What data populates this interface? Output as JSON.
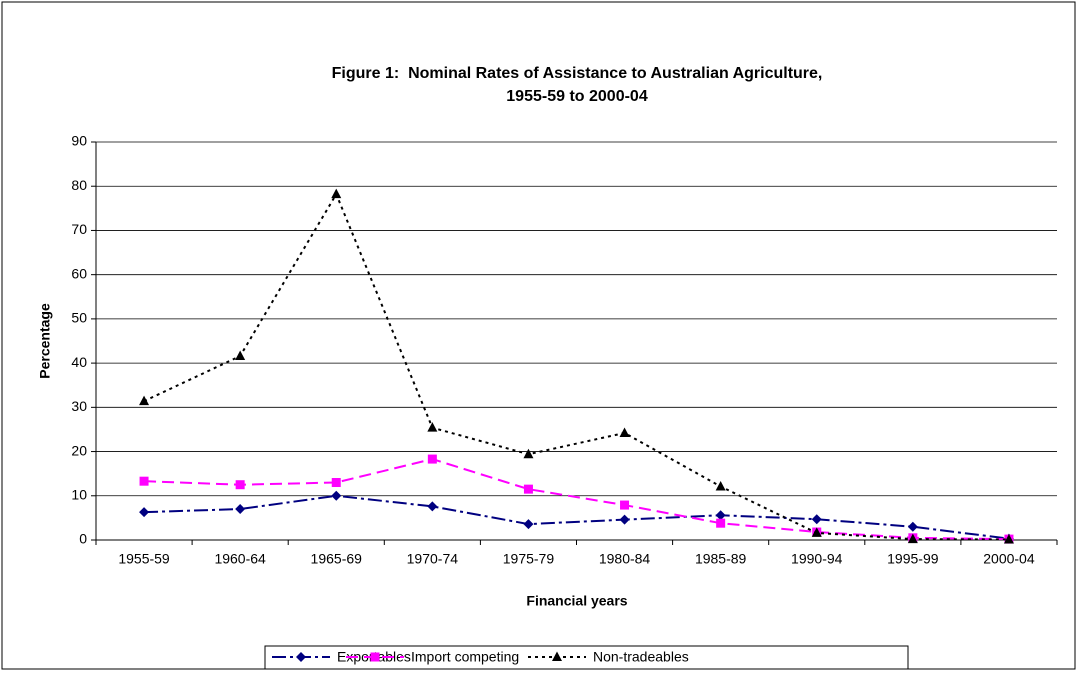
{
  "chart_data": {
    "type": "line",
    "title": [
      "Figure 1:  Nominal Rates of Assistance to Australian Agriculture,",
      "1955-59 to 2000-04"
    ],
    "x_label": "Financial years",
    "y_label": "Percentage",
    "categories": [
      "1955-59",
      "1960-64",
      "1965-69",
      "1970-74",
      "1975-79",
      "1980-84",
      "1985-89",
      "1990-94",
      "1995-99",
      "2000-04"
    ],
    "series": [
      {
        "name": "Exportables",
        "color": "#000080",
        "marker": "diamond",
        "dash": "14 4 3 4",
        "values": [
          6.3,
          7.0,
          10.0,
          7.6,
          3.6,
          4.6,
          5.6,
          4.7,
          3.0,
          0.3
        ]
      },
      {
        "name": "Import competing",
        "color": "#ff00ff",
        "marker": "square",
        "dash": "12 6",
        "values": [
          13.3,
          12.5,
          13.0,
          18.3,
          11.5,
          7.9,
          3.8,
          1.8,
          0.5,
          0.2
        ]
      },
      {
        "name": "Non-tradeables",
        "color": "#000000",
        "marker": "triangle",
        "dash": "3 4",
        "values": [
          31.4,
          41.6,
          78.2,
          25.4,
          19.4,
          24.2,
          12.1,
          1.6,
          0.2,
          0.1
        ]
      }
    ],
    "ylim": [
      0,
      90
    ],
    "yticks": [
      0,
      10,
      20,
      30,
      40,
      50,
      60,
      70,
      80,
      90
    ],
    "grid": true,
    "legend": "bottom"
  }
}
